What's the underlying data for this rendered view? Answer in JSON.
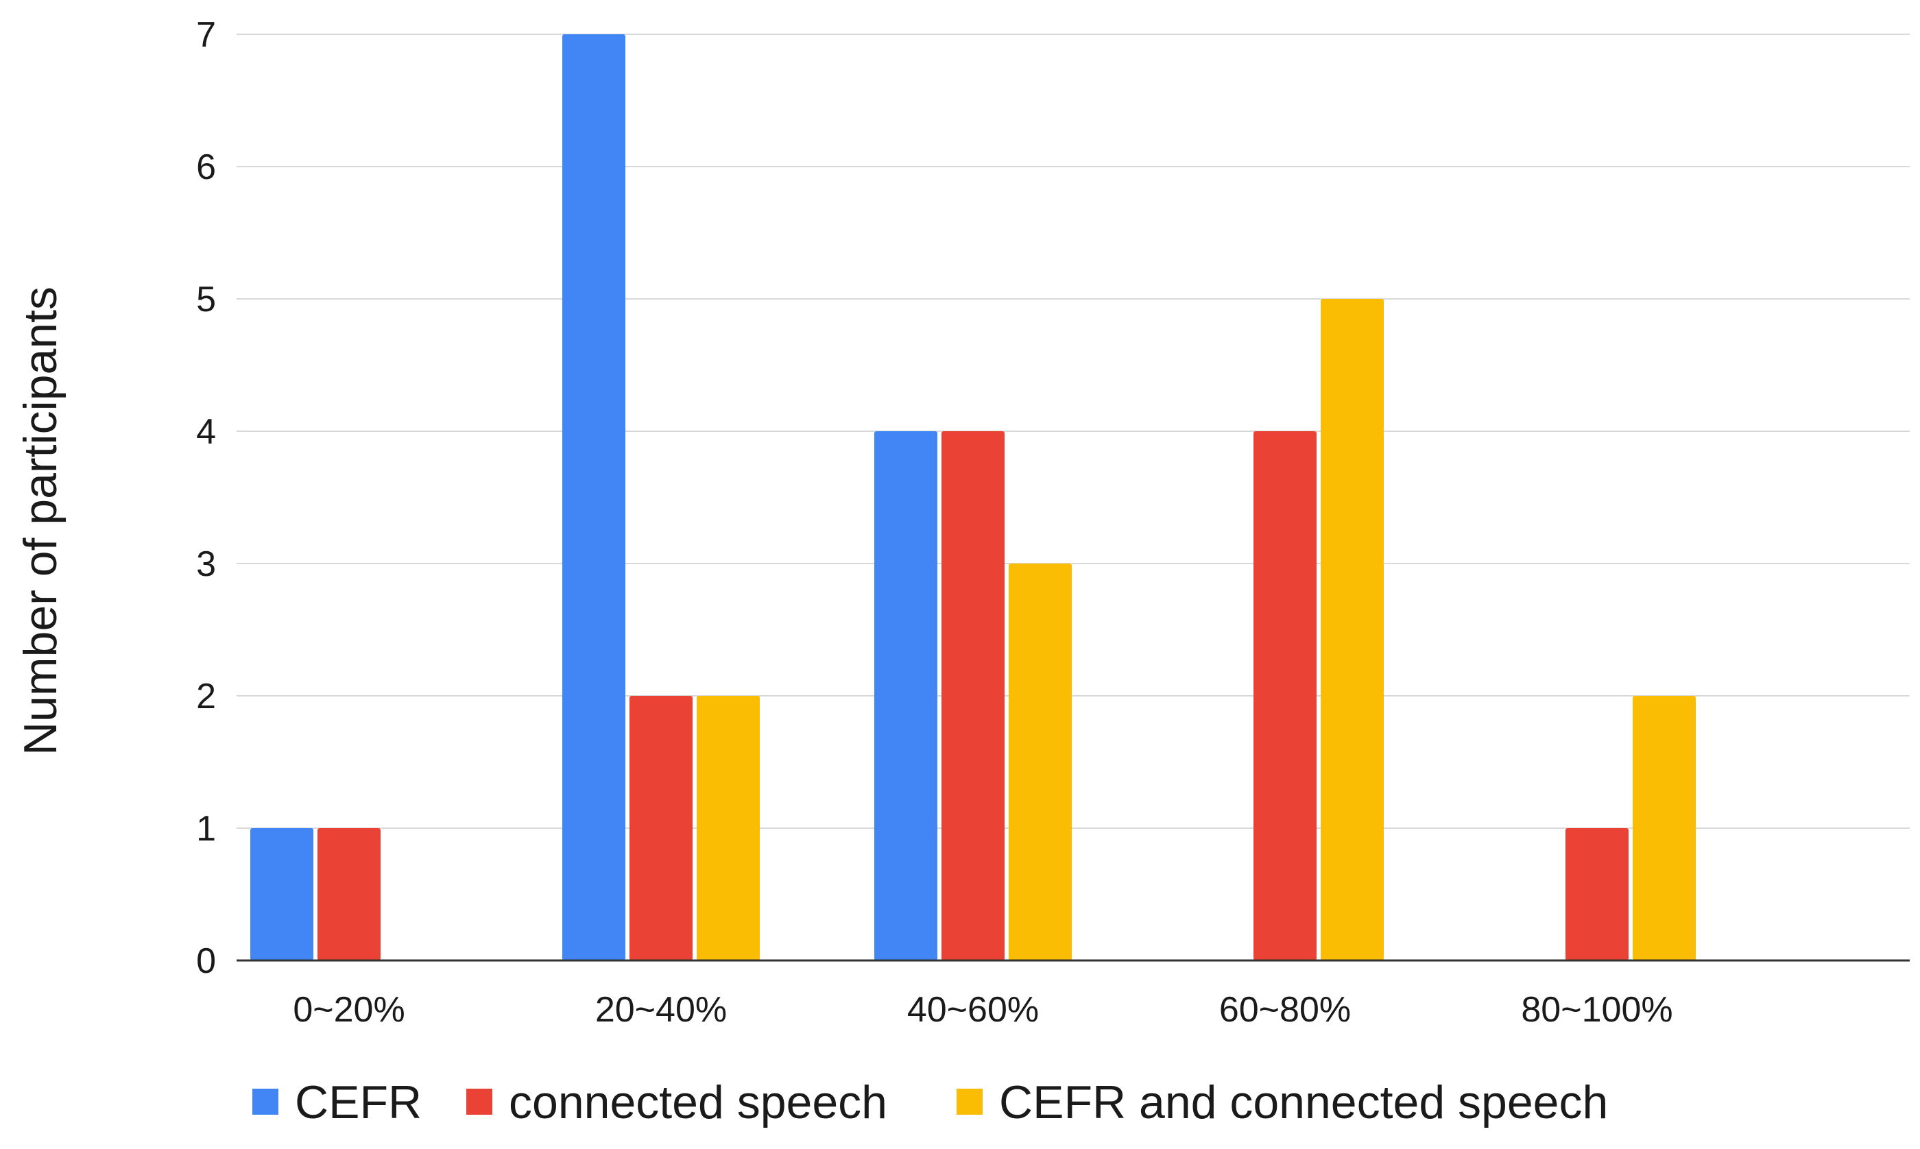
{
  "chart_data": {
    "type": "bar",
    "title": "",
    "xlabel": "",
    "ylabel": "Number of participants",
    "ylim": [
      0,
      7
    ],
    "yticks": [
      "0",
      "1",
      "2",
      "3",
      "4",
      "5",
      "6",
      "7"
    ],
    "grid": true,
    "legend_position": "bottom-left",
    "categories": [
      "0~20%",
      "20~40%",
      "40~60%",
      "60~80%",
      "80~100%"
    ],
    "series": [
      {
        "name": "CEFR",
        "color": "#4285F4",
        "values": [
          1,
          7,
          4,
          0,
          0
        ]
      },
      {
        "name": "connected speech",
        "color": "#EA4335",
        "values": [
          1,
          2,
          4,
          4,
          1
        ]
      },
      {
        "name": "CEFR and connected speech",
        "color": "#FBBC04",
        "values": [
          0,
          2,
          3,
          5,
          2
        ]
      }
    ]
  }
}
